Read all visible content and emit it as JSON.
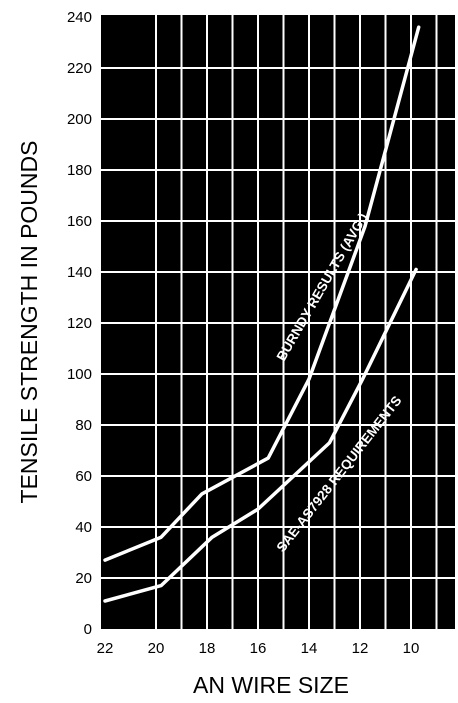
{
  "chart_data": {
    "type": "line",
    "title": "",
    "xlabel": "AN WIRE SIZE",
    "ylabel": "TENSILE STRENGTH IN POUNDS",
    "x_ticks": [
      "22",
      "20",
      "18",
      "16",
      "14",
      "12",
      "10"
    ],
    "x_tick_values": [
      22,
      20,
      18,
      16,
      14,
      12,
      10
    ],
    "xlim": [
      22,
      8
    ],
    "ylim": [
      0,
      240
    ],
    "y_ticks": [
      0,
      20,
      40,
      60,
      80,
      100,
      120,
      140,
      160,
      180,
      200,
      220,
      240
    ],
    "grid": true,
    "background": "#000000",
    "line_color": "#ffffff",
    "series": [
      {
        "name": "BURNDY RESULTS (AVG.)",
        "points": [
          {
            "x": 22,
            "y": 27
          },
          {
            "x": 19.8,
            "y": 36
          },
          {
            "x": 18.2,
            "y": 53
          },
          {
            "x": 15.6,
            "y": 67
          },
          {
            "x": 14,
            "y": 98
          },
          {
            "x": 11.8,
            "y": 158
          },
          {
            "x": 9.7,
            "y": 236
          }
        ]
      },
      {
        "name": "SAE-AS7928 REQUIREMENTS",
        "points": [
          {
            "x": 22,
            "y": 11
          },
          {
            "x": 19.8,
            "y": 17
          },
          {
            "x": 17.8,
            "y": 36
          },
          {
            "x": 16,
            "y": 47
          },
          {
            "x": 13.2,
            "y": 73
          },
          {
            "x": 11.9,
            "y": 98
          },
          {
            "x": 9.8,
            "y": 141
          }
        ]
      }
    ]
  }
}
